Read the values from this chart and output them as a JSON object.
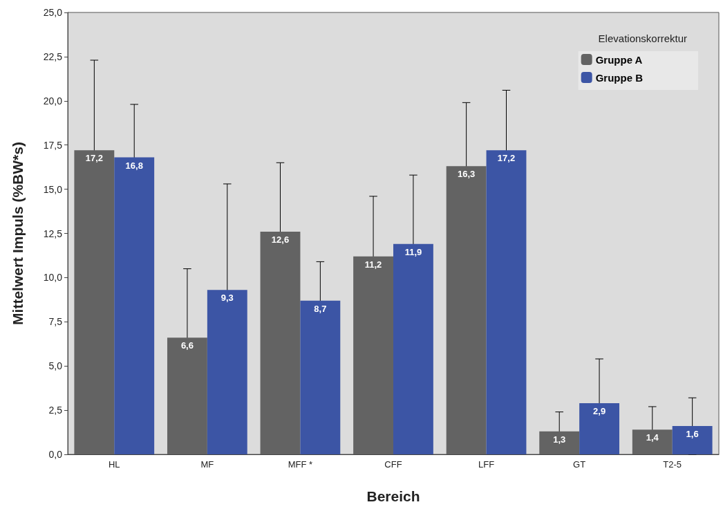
{
  "chart_data": {
    "type": "bar",
    "xlabel": "Bereich",
    "ylabel": "Mittelwert Impuls (%BW*s)",
    "legend_title": "Elevationskorrektur",
    "categories": [
      "HL",
      "MF",
      "MFF *",
      "CFF",
      "LFF",
      "GT",
      "T2-5"
    ],
    "series": [
      {
        "name": "Gruppe A",
        "color": "#636363",
        "values": [
          17.2,
          6.6,
          12.6,
          11.2,
          16.3,
          1.3,
          1.4
        ],
        "value_labels": [
          "17,2",
          "6,6",
          "12,6",
          "11,2",
          "16,3",
          "1,3",
          "1,4"
        ],
        "errors": [
          5.1,
          3.9,
          3.9,
          3.4,
          3.6,
          1.1,
          1.3
        ]
      },
      {
        "name": "Gruppe B",
        "color": "#3c55a5",
        "values": [
          16.8,
          9.3,
          8.7,
          11.9,
          17.2,
          2.9,
          1.6
        ],
        "value_labels": [
          "16,8",
          "9,3",
          "8,7",
          "11,9",
          "17,2",
          "2,9",
          "1,6"
        ],
        "errors": [
          3.0,
          6.0,
          2.2,
          3.9,
          3.4,
          2.5,
          1.6
        ]
      }
    ],
    "ylim": [
      0,
      25
    ],
    "yticks": [
      {
        "value": 0,
        "label": "0,0"
      },
      {
        "value": 2.5,
        "label": "2,5"
      },
      {
        "value": 5,
        "label": "5,0"
      },
      {
        "value": 7.5,
        "label": "7,5"
      },
      {
        "value": 10,
        "label": "10,0"
      },
      {
        "value": 12.5,
        "label": "12,5"
      },
      {
        "value": 15,
        "label": "15,0"
      },
      {
        "value": 17.5,
        "label": "17,5"
      },
      {
        "value": 20,
        "label": "20,0"
      },
      {
        "value": 22.5,
        "label": "22,5"
      },
      {
        "value": 25,
        "label": "25,0"
      }
    ],
    "grid": false,
    "legend": "top right"
  }
}
